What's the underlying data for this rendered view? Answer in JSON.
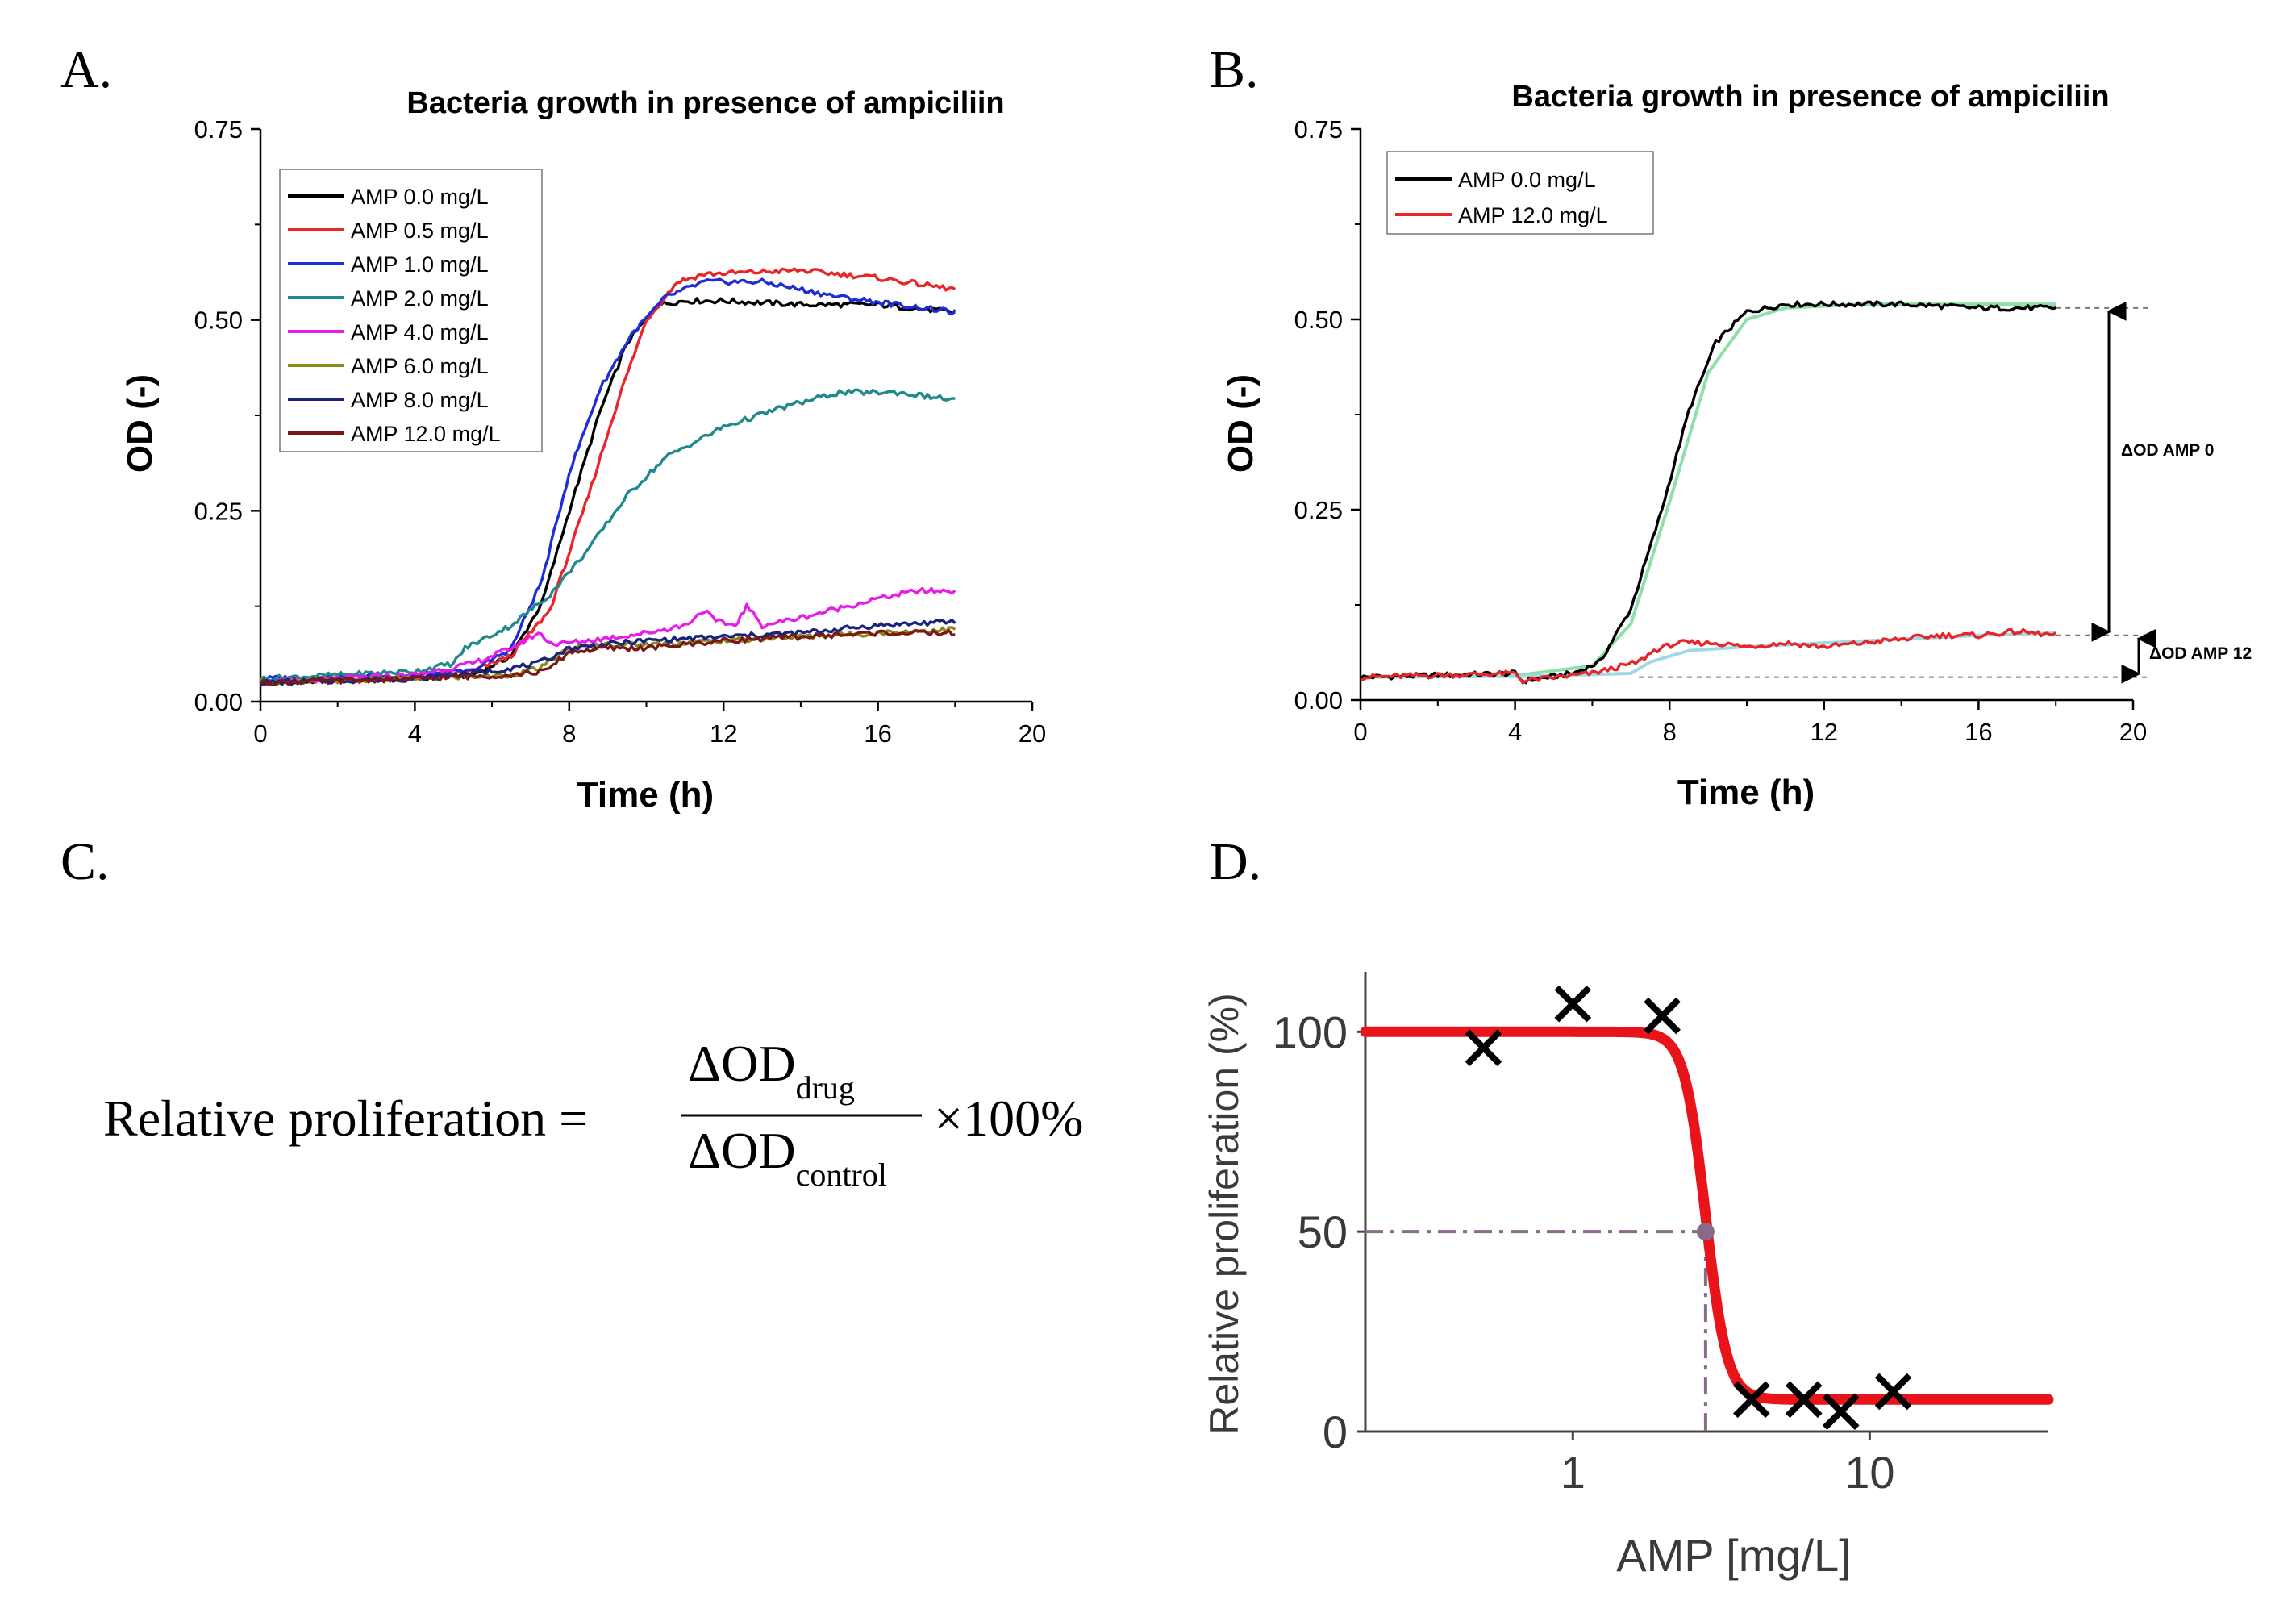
{
  "panels": {
    "a": {
      "label": "A.",
      "chart_data": {
        "type": "line",
        "title": "Bacteria growth in presence of ampiciliin",
        "xlabel": "Time (h)",
        "ylabel": "OD (-)",
        "xlim": [
          0,
          20
        ],
        "ylim": [
          0,
          0.75
        ],
        "xticks": [
          "0",
          "4",
          "8",
          "12",
          "16",
          "20"
        ],
        "yticks": [
          "0.00",
          "0.25",
          "0.50",
          "0.75"
        ],
        "legend_position": "top-left",
        "series": [
          {
            "name": "AMP 0.0 mg/L",
            "color": "#000000",
            "points": [
              [
                0,
                0.025
              ],
              [
                4,
                0.03
              ],
              [
                5.5,
                0.035
              ],
              [
                6.5,
                0.06
              ],
              [
                7.3,
                0.13
              ],
              [
                8,
                0.25
              ],
              [
                8.8,
                0.38
              ],
              [
                9.5,
                0.47
              ],
              [
                10.3,
                0.52
              ],
              [
                11,
                0.525
              ],
              [
                12,
                0.525
              ],
              [
                14,
                0.52
              ],
              [
                16,
                0.52
              ],
              [
                18,
                0.51
              ]
            ]
          },
          {
            "name": "AMP 0.5 mg/L",
            "color": "#e8262a",
            "points": [
              [
                0,
                0.025
              ],
              [
                4,
                0.03
              ],
              [
                5.5,
                0.04
              ],
              [
                6.5,
                0.06
              ],
              [
                7.5,
                0.12
              ],
              [
                8.5,
                0.27
              ],
              [
                9.3,
                0.4
              ],
              [
                10,
                0.5
              ],
              [
                10.8,
                0.55
              ],
              [
                11.5,
                0.56
              ],
              [
                14,
                0.565
              ],
              [
                16,
                0.555
              ],
              [
                18,
                0.54
              ]
            ]
          },
          {
            "name": "AMP 1.0 mg/L",
            "color": "#1f2dd6",
            "points": [
              [
                0,
                0.03
              ],
              [
                4,
                0.035
              ],
              [
                5.5,
                0.04
              ],
              [
                6.5,
                0.07
              ],
              [
                7.3,
                0.16
              ],
              [
                8,
                0.3
              ],
              [
                8.8,
                0.41
              ],
              [
                9.6,
                0.48
              ],
              [
                10.5,
                0.53
              ],
              [
                11.5,
                0.55
              ],
              [
                13,
                0.55
              ],
              [
                15,
                0.53
              ],
              [
                16.5,
                0.52
              ],
              [
                18,
                0.51
              ]
            ]
          },
          {
            "name": "AMP 2.0 mg/L",
            "color": "#20898a",
            "points": [
              [
                0,
                0.03
              ],
              [
                4,
                0.04
              ],
              [
                5,
                0.05
              ],
              [
                5.3,
                0.07
              ],
              [
                6.5,
                0.1
              ],
              [
                7.5,
                0.14
              ],
              [
                8.5,
                0.2
              ],
              [
                9.5,
                0.27
              ],
              [
                10.5,
                0.32
              ],
              [
                12,
                0.36
              ],
              [
                13.5,
                0.385
              ],
              [
                15,
                0.405
              ],
              [
                16.5,
                0.405
              ],
              [
                18,
                0.395
              ]
            ]
          },
          {
            "name": "AMP 4.0 mg/L",
            "color": "#e81be8",
            "points": [
              [
                0,
                0.025
              ],
              [
                4,
                0.035
              ],
              [
                5.5,
                0.05
              ],
              [
                6.5,
                0.07
              ],
              [
                7.2,
                0.09
              ],
              [
                7.6,
                0.075
              ],
              [
                8.5,
                0.08
              ],
              [
                10,
                0.09
              ],
              [
                11,
                0.1
              ],
              [
                11.5,
                0.12
              ],
              [
                11.8,
                0.105
              ],
              [
                12.3,
                0.1
              ],
              [
                12.6,
                0.125
              ],
              [
                13,
                0.1
              ],
              [
                14,
                0.11
              ],
              [
                16,
                0.135
              ],
              [
                17,
                0.145
              ],
              [
                18,
                0.145
              ]
            ]
          },
          {
            "name": "AMP 6.0 mg/L",
            "color": "#8a8a1a",
            "points": [
              [
                0,
                0.025
              ],
              [
                4,
                0.03
              ],
              [
                6.5,
                0.035
              ],
              [
                7.3,
                0.045
              ],
              [
                8,
                0.07
              ],
              [
                9,
                0.075
              ],
              [
                10,
                0.075
              ],
              [
                12,
                0.08
              ],
              [
                14,
                0.085
              ],
              [
                16,
                0.09
              ],
              [
                18,
                0.095
              ]
            ]
          },
          {
            "name": "AMP 8.0 mg/L",
            "color": "#1a237e",
            "points": [
              [
                0,
                0.025
              ],
              [
                4,
                0.03
              ],
              [
                6,
                0.04
              ],
              [
                7.2,
                0.05
              ],
              [
                8,
                0.07
              ],
              [
                9,
                0.075
              ],
              [
                10,
                0.08
              ],
              [
                12,
                0.085
              ],
              [
                14,
                0.09
              ],
              [
                16,
                0.1
              ],
              [
                18,
                0.105
              ]
            ]
          },
          {
            "name": "AMP 12.0 mg/L",
            "color": "#7a1818",
            "points": [
              [
                0,
                0.025
              ],
              [
                4,
                0.03
              ],
              [
                6.5,
                0.035
              ],
              [
                7.4,
                0.04
              ],
              [
                8,
                0.065
              ],
              [
                9,
                0.07
              ],
              [
                10,
                0.07
              ],
              [
                12,
                0.08
              ],
              [
                14,
                0.085
              ],
              [
                16,
                0.09
              ],
              [
                18,
                0.09
              ]
            ]
          }
        ]
      }
    },
    "b": {
      "label": "B.",
      "delta_labels": {
        "amp0": "ΔOD AMP 0",
        "amp12": "ΔOD AMP 12"
      },
      "chart_data": {
        "type": "line",
        "title": "Bacteria growth in presence of ampiciliin",
        "xlabel": "Time (h)",
        "ylabel": "OD (-)",
        "xlim": [
          0,
          20
        ],
        "ylim": [
          0,
          0.75
        ],
        "xticks": [
          "0",
          "4",
          "8",
          "12",
          "16",
          "20"
        ],
        "yticks": [
          "0.00",
          "0.25",
          "0.50",
          "0.75"
        ],
        "legend_position": "top-left",
        "series": [
          {
            "name": "AMP 0.0 mg/L",
            "color": "#000000",
            "points": [
              [
                0,
                0.03
              ],
              [
                4,
                0.035
              ],
              [
                4.2,
                0.025
              ],
              [
                5.5,
                0.035
              ],
              [
                6.2,
                0.05
              ],
              [
                7,
                0.12
              ],
              [
                7.8,
                0.25
              ],
              [
                8.5,
                0.38
              ],
              [
                9.2,
                0.47
              ],
              [
                10,
                0.51
              ],
              [
                11,
                0.52
              ],
              [
                12,
                0.52
              ],
              [
                14,
                0.52
              ],
              [
                16,
                0.515
              ],
              [
                18,
                0.515
              ]
            ]
          },
          {
            "name": "AMP 12.0 mg/L",
            "color": "#e8262a",
            "points": [
              [
                0,
                0.03
              ],
              [
                4,
                0.035
              ],
              [
                4.2,
                0.025
              ],
              [
                6,
                0.035
              ],
              [
                7.2,
                0.05
              ],
              [
                7.6,
                0.065
              ],
              [
                8.2,
                0.075
              ],
              [
                9.2,
                0.075
              ],
              [
                10,
                0.07
              ],
              [
                11,
                0.075
              ],
              [
                12,
                0.07
              ],
              [
                13,
                0.075
              ],
              [
                14,
                0.08
              ],
              [
                15,
                0.085
              ],
              [
                16,
                0.085
              ],
              [
                17,
                0.09
              ],
              [
                18,
                0.085
              ]
            ]
          }
        ],
        "fits": [
          {
            "name": "fit AMP 0",
            "color": "#8fe0a8",
            "points": [
              [
                0,
                0.03
              ],
              [
                4,
                0.032
              ],
              [
                6,
                0.045
              ],
              [
                7,
                0.1
              ],
              [
                8,
                0.26
              ],
              [
                9,
                0.43
              ],
              [
                10,
                0.5
              ],
              [
                11,
                0.515
              ],
              [
                13,
                0.52
              ],
              [
                18,
                0.52
              ]
            ]
          },
          {
            "name": "fit AMP 12",
            "color": "#9fd9e6",
            "points": [
              [
                0,
                0.03
              ],
              [
                4,
                0.031
              ],
              [
                7,
                0.035
              ],
              [
                7.5,
                0.05
              ],
              [
                8.5,
                0.065
              ],
              [
                10,
                0.07
              ],
              [
                12,
                0.075
              ],
              [
                14,
                0.08
              ],
              [
                16,
                0.085
              ],
              [
                18,
                0.088
              ]
            ]
          }
        ]
      }
    },
    "c": {
      "label": "C.",
      "formula": {
        "lhs": "Relative proliferation =",
        "num_main": "ΔOD",
        "num_sub": "drug",
        "den_main": "ΔOD",
        "den_sub": "control",
        "rhs": "×100%"
      }
    },
    "d": {
      "label": "D.",
      "chart_data": {
        "type": "scatter",
        "xlabel": "AMP [mg/L]",
        "ylabel": "Relative proliferation (%)",
        "x_scale": "log",
        "xlim": [
          0.2,
          40
        ],
        "ylim": [
          0,
          115
        ],
        "xticks": [
          {
            "value": 1,
            "label": "1"
          },
          {
            "value": 10,
            "label": "10"
          }
        ],
        "yticks": [
          {
            "value": 0,
            "label": "0"
          },
          {
            "value": 50,
            "label": "50"
          },
          {
            "value": 100,
            "label": "100"
          }
        ],
        "points": [
          {
            "x": 0.5,
            "y": 96
          },
          {
            "x": 1.0,
            "y": 107
          },
          {
            "x": 2.0,
            "y": 104
          },
          {
            "x": 4.0,
            "y": 8
          },
          {
            "x": 6.0,
            "y": 8
          },
          {
            "x": 8.0,
            "y": 5
          },
          {
            "x": 12.0,
            "y": 10
          }
        ],
        "fit": {
          "top": 100,
          "bottom": 8,
          "ic50": 2.8,
          "hill": 12,
          "color": "#e8141a"
        },
        "ic50_marker": {
          "x": 2.8,
          "y": 50,
          "color": "#8a6a8a"
        }
      }
    }
  }
}
